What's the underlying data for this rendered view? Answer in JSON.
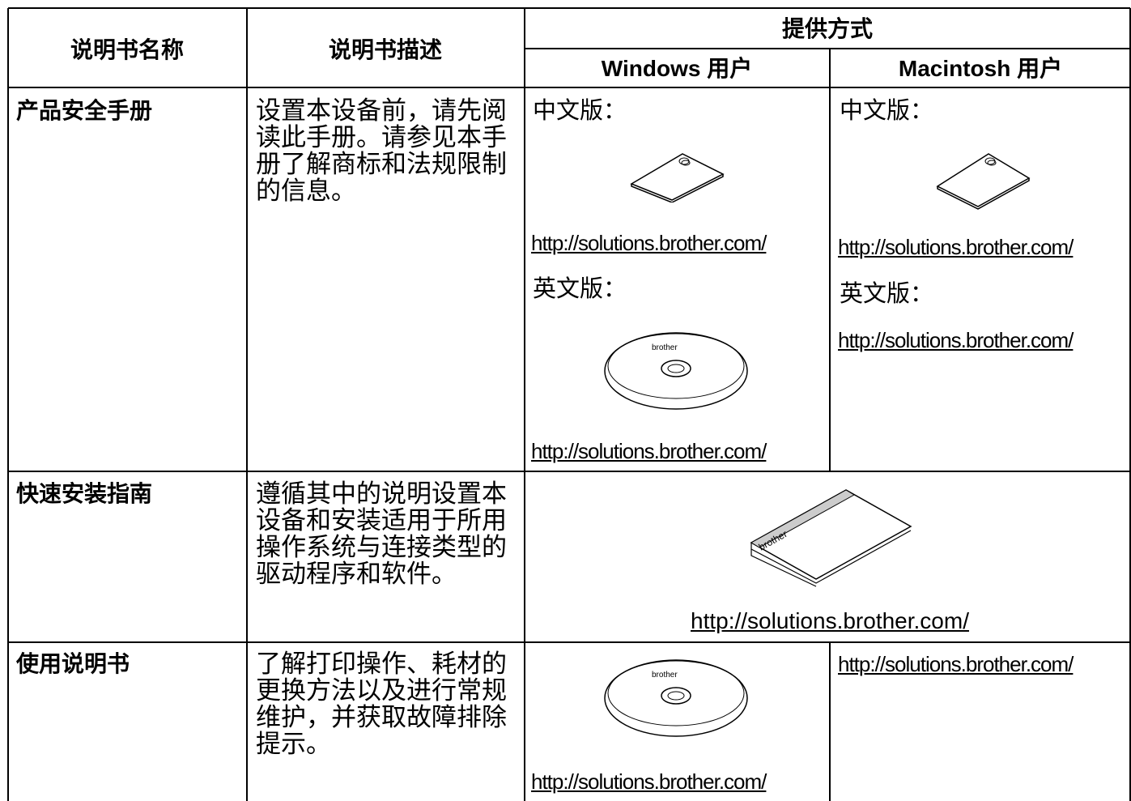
{
  "header": {
    "name": "说明书名称",
    "description": "说明书描述",
    "provided": "提供方式",
    "windows": "Windows 用户",
    "mac": "Macintosh 用户"
  },
  "brand": "brother",
  "rows": [
    {
      "name": "产品安全手册",
      "description": "设置本设备前，请先阅读此手册。请参见本手册了解商标和法规限制的信息。",
      "windows": {
        "chinese_label": "中文版：",
        "chinese_url": "http://solutions.brother.com/",
        "english_label": "英文版：",
        "english_url": "http://solutions.brother.com/"
      },
      "mac": {
        "chinese_label": "中文版：",
        "chinese_url": "http://solutions.brother.com/",
        "english_label": "英文版：",
        "english_url": "http://solutions.brother.com/"
      }
    },
    {
      "name": "快速安装指南",
      "description": "遵循其中的说明设置本设备和安装适用于所用操作系统与连接类型的驱动程序和软件。",
      "url": "http://solutions.brother.com/"
    },
    {
      "name": "使用说明书",
      "description": "了解打印操作、耗材的更换方法以及进行常规维护，并获取故障排除提示。",
      "windows_url": "http://solutions.brother.com/",
      "mac_url": "http://solutions.brother.com/"
    }
  ]
}
